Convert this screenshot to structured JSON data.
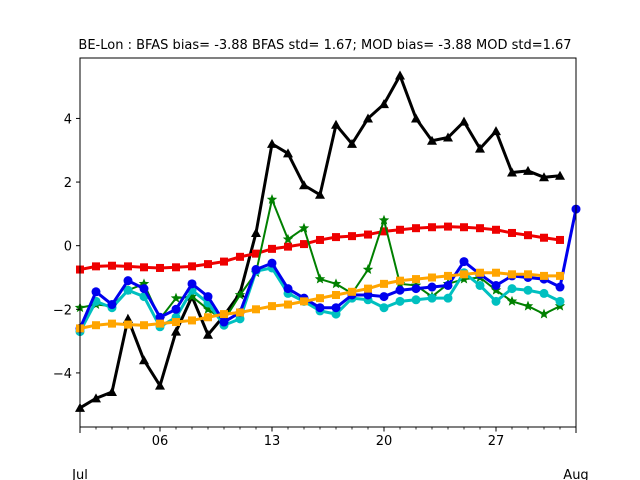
{
  "chart_data": {
    "type": "line",
    "title": "BE-Lon   : BFAS bias= -3.88 BFAS std= 1.67; MOD bias= -3.88 MOD std=1.67",
    "xlabel": "",
    "ylabel": "",
    "x_range": [
      1,
      32
    ],
    "ylim": [
      -5.7,
      5.9
    ],
    "y_ticks": [
      -4,
      -2,
      0,
      2,
      4
    ],
    "x_ticks": [
      {
        "x": 6,
        "label": "06"
      },
      {
        "x": 13,
        "label": "13"
      },
      {
        "x": 20,
        "label": "20"
      },
      {
        "x": 27,
        "label": "27"
      }
    ],
    "x_month_labels": [
      {
        "x": 1,
        "label": "Jul"
      },
      {
        "x": 32,
        "label": "Aug"
      }
    ],
    "grid": false,
    "legend": "none",
    "series": [
      {
        "color": "#000000",
        "marker": "triangle",
        "line_width": 3,
        "x": [
          1,
          2,
          3,
          4,
          5,
          6,
          7,
          8,
          9,
          10,
          11,
          12,
          13,
          14,
          15,
          16,
          17,
          18,
          19,
          20,
          21,
          22,
          23,
          24,
          25,
          26,
          27,
          28,
          29,
          30,
          31
        ],
        "values": [
          -5.1,
          -4.8,
          -4.6,
          -2.3,
          -3.6,
          -4.4,
          -2.7,
          -1.6,
          -2.8,
          -2.2,
          -1.5,
          0.4,
          3.2,
          2.9,
          1.9,
          1.6,
          3.8,
          3.2,
          4.0,
          4.45,
          5.35,
          4.0,
          3.3,
          3.4,
          3.9,
          3.05,
          3.6,
          2.3,
          2.35,
          2.15,
          2.2
        ]
      },
      {
        "color": "#ee0000",
        "marker": "square",
        "line_width": 3,
        "x": [
          1,
          2,
          3,
          4,
          5,
          6,
          7,
          8,
          9,
          10,
          11,
          12,
          13,
          14,
          15,
          16,
          17,
          18,
          19,
          20,
          21,
          22,
          23,
          24,
          25,
          26,
          27,
          28,
          29,
          30,
          31
        ],
        "values": [
          -0.75,
          -0.65,
          -0.63,
          -0.65,
          -0.68,
          -0.7,
          -0.68,
          -0.65,
          -0.58,
          -0.5,
          -0.35,
          -0.25,
          -0.1,
          -0.03,
          0.05,
          0.18,
          0.27,
          0.3,
          0.35,
          0.45,
          0.5,
          0.55,
          0.58,
          0.6,
          0.58,
          0.55,
          0.5,
          0.4,
          0.33,
          0.25,
          0.18
        ]
      },
      {
        "color": "#008000",
        "marker": "star",
        "line_width": 2,
        "x": [
          1,
          2,
          3,
          4,
          5,
          6,
          7,
          8,
          9,
          10,
          11,
          12,
          13,
          14,
          15,
          16,
          17,
          18,
          19,
          20,
          21,
          22,
          23,
          24,
          25,
          26,
          27,
          28,
          29,
          30,
          31
        ],
        "values": [
          -1.95,
          -1.85,
          -1.9,
          -1.4,
          -1.2,
          -2.3,
          -1.65,
          -1.6,
          -2.0,
          -2.35,
          -1.55,
          -0.85,
          1.45,
          0.2,
          0.55,
          -1.05,
          -1.2,
          -1.5,
          -0.75,
          0.8,
          -1.2,
          -1.25,
          -1.6,
          -1.2,
          -1.05,
          -1.0,
          -1.4,
          -1.75,
          -1.9,
          -2.15,
          -1.9
        ]
      },
      {
        "color": "#00c0c0",
        "marker": "circle",
        "line_width": 3,
        "x": [
          1,
          2,
          3,
          4,
          5,
          6,
          7,
          8,
          9,
          10,
          11,
          12,
          13,
          14,
          15,
          16,
          17,
          18,
          19,
          20,
          21,
          22,
          23,
          24,
          25,
          26,
          27,
          28,
          29,
          30,
          31
        ],
        "values": [
          -2.7,
          -1.75,
          -1.95,
          -1.4,
          -1.6,
          -2.55,
          -2.25,
          -1.4,
          -1.8,
          -2.5,
          -2.3,
          -0.8,
          -0.7,
          -1.5,
          -1.75,
          -2.05,
          -2.15,
          -1.65,
          -1.7,
          -1.95,
          -1.75,
          -1.7,
          -1.65,
          -1.65,
          -0.85,
          -1.25,
          -1.75,
          -1.35,
          -1.4,
          -1.5,
          -1.75
        ]
      },
      {
        "color": "#0000ee",
        "marker": "circle",
        "line_width": 3,
        "x": [
          1,
          2,
          3,
          4,
          5,
          6,
          7,
          8,
          9,
          10,
          11,
          12,
          13,
          14,
          15,
          16,
          17,
          18,
          19,
          20,
          21,
          22,
          23,
          24,
          25,
          26,
          27,
          28,
          29,
          30,
          31,
          32
        ],
        "values": [
          -2.6,
          -1.45,
          -1.85,
          -1.1,
          -1.35,
          -2.25,
          -2.0,
          -1.2,
          -1.6,
          -2.4,
          -2.1,
          -0.75,
          -0.55,
          -1.35,
          -1.65,
          -1.95,
          -1.95,
          -1.55,
          -1.55,
          -1.6,
          -1.4,
          -1.35,
          -1.3,
          -1.25,
          -0.5,
          -0.9,
          -1.25,
          -0.95,
          -1.0,
          -1.05,
          -1.3,
          1.15
        ]
      },
      {
        "color": "#ffa500",
        "marker": "square",
        "line_width": 3,
        "x": [
          1,
          2,
          3,
          4,
          5,
          6,
          7,
          8,
          9,
          10,
          11,
          12,
          13,
          14,
          15,
          16,
          17,
          18,
          19,
          20,
          21,
          22,
          23,
          24,
          25,
          26,
          27,
          28,
          29,
          30,
          31
        ],
        "values": [
          -2.6,
          -2.5,
          -2.45,
          -2.48,
          -2.5,
          -2.45,
          -2.4,
          -2.35,
          -2.25,
          -2.15,
          -2.1,
          -2.0,
          -1.9,
          -1.85,
          -1.75,
          -1.65,
          -1.55,
          -1.45,
          -1.35,
          -1.2,
          -1.1,
          -1.05,
          -1.0,
          -0.95,
          -0.9,
          -0.85,
          -0.85,
          -0.9,
          -0.9,
          -0.95,
          -0.95
        ]
      }
    ]
  }
}
